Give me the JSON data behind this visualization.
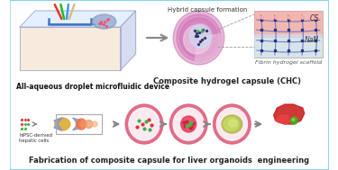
{
  "background_color": "#ffffff",
  "border_color": "#87CEEB",
  "title_bottom": "Fabrication of composite capsule for liver organoids  engineering",
  "title_top_right": "Composite hydrogel capsule (CHC)",
  "label_top_left": "All-aqueous droplet microfluidic device",
  "label_bottom_left": "hiPSC-derived\nhepatic cells",
  "label_hybrid": "Hybrid capsule formation",
  "label_fibrin": "Fibrin hydrogel scaffold",
  "label_cs": "CS",
  "label_naa": "NaN",
  "fig_width": 3.75,
  "fig_height": 1.89,
  "dpi": 100
}
